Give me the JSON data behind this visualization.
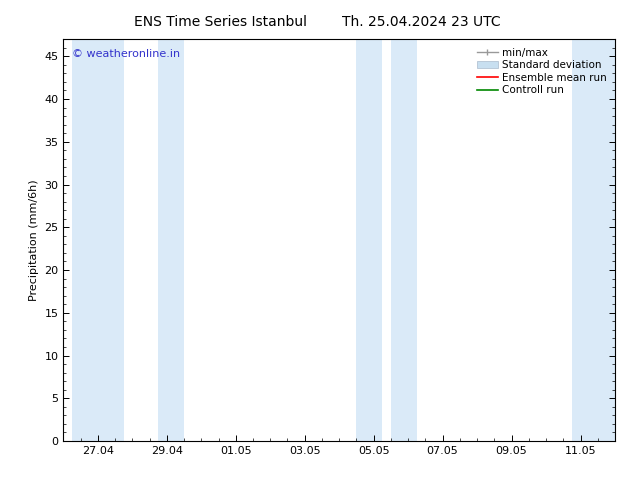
{
  "title_left": "ENS Time Series Istanbul",
  "title_right": "Th. 25.04.2024 23 UTC",
  "ylabel": "Precipitation (mm/6h)",
  "ylim": [
    0,
    47
  ],
  "yticks": [
    0,
    5,
    10,
    15,
    20,
    25,
    30,
    35,
    40,
    45
  ],
  "xtick_labels": [
    "27.04",
    "29.04",
    "01.05",
    "03.05",
    "05.05",
    "07.05",
    "09.05",
    "11.05"
  ],
  "xtick_positions": [
    1,
    3,
    5,
    7,
    9,
    11,
    13,
    15
  ],
  "x_min": 0,
  "x_max": 16,
  "shaded_regions": [
    [
      0.25,
      1.75
    ],
    [
      2.75,
      3.5
    ],
    [
      8.5,
      9.25
    ],
    [
      9.5,
      10.25
    ],
    [
      14.75,
      16.0
    ]
  ],
  "band_color": "#daeaf8",
  "watermark": "© weatheronline.in",
  "watermark_color": "#3333cc",
  "legend_labels": [
    "min/max",
    "Standard deviation",
    "Ensemble mean run",
    "Controll run"
  ],
  "legend_colors": [
    "#aaaaaa",
    "#c8dff0",
    "#ff0000",
    "#008800"
  ],
  "title_fontsize": 10,
  "label_fontsize": 8,
  "tick_fontsize": 8,
  "watermark_fontsize": 8,
  "legend_fontsize": 7.5,
  "background_color": "#ffffff",
  "plot_bg_color": "#ffffff"
}
